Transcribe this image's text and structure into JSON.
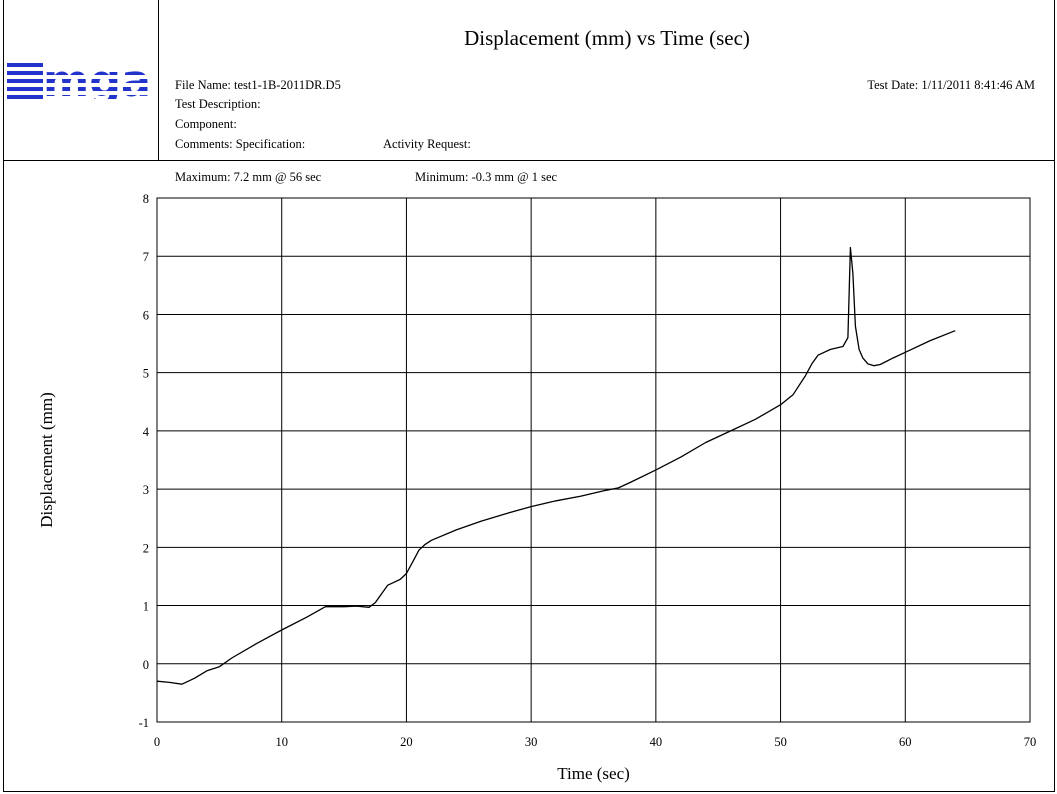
{
  "header": {
    "logo_text": "mga",
    "title": "Displacement (mm) vs Time (sec)",
    "file_name": "File Name: test1-1B-2011DR.D5",
    "test_date": "Test Date: 1/11/2011  8:41:46 AM",
    "test_description": "Test Description:",
    "component": "Component:",
    "comments": "Comments: Specification:",
    "activity_request": "Activity Request:"
  },
  "stats": {
    "maximum": "Maximum: 7.2 mm @ 56 sec",
    "minimum": "Minimum: -0.3 mm @ 1 sec"
  },
  "colors": {
    "logo": "#2233cc",
    "line": "#000000",
    "grid": "#000000"
  },
  "chart_data": {
    "type": "line",
    "xlabel": "Time (sec)",
    "ylabel": "Displacement (mm)",
    "xlim": [
      0,
      70
    ],
    "ylim": [
      -1,
      8
    ],
    "xticks": [
      0,
      10,
      20,
      30,
      40,
      50,
      60,
      70
    ],
    "yticks": [
      -1,
      0,
      1,
      2,
      3,
      4,
      5,
      6,
      7,
      8
    ],
    "grid": true,
    "x": [
      0,
      1,
      2,
      3,
      4,
      5,
      6,
      8,
      10,
      12,
      13.5,
      15,
      16,
      17,
      17.5,
      18,
      18.5,
      19,
      19.5,
      20,
      20.5,
      21,
      21.5,
      22,
      24,
      26,
      28,
      30,
      32,
      34,
      36,
      37,
      38,
      40,
      42,
      44,
      46,
      48,
      50,
      51,
      52,
      52.5,
      53,
      54,
      55,
      55.4,
      55.6,
      55.8,
      56,
      56.3,
      56.6,
      57,
      57.5,
      58,
      59,
      60,
      62,
      64
    ],
    "y": [
      -0.3,
      -0.32,
      -0.35,
      -0.25,
      -0.12,
      -0.05,
      0.1,
      0.35,
      0.58,
      0.8,
      0.98,
      0.98,
      0.99,
      0.97,
      1.05,
      1.2,
      1.35,
      1.4,
      1.45,
      1.55,
      1.75,
      1.95,
      2.05,
      2.12,
      2.3,
      2.45,
      2.58,
      2.7,
      2.8,
      2.88,
      2.98,
      3.02,
      3.12,
      3.33,
      3.55,
      3.8,
      4.0,
      4.2,
      4.45,
      4.62,
      4.95,
      5.15,
      5.3,
      5.4,
      5.45,
      5.6,
      7.15,
      6.7,
      5.8,
      5.4,
      5.25,
      5.15,
      5.12,
      5.14,
      5.25,
      5.35,
      5.55,
      5.72
    ]
  }
}
